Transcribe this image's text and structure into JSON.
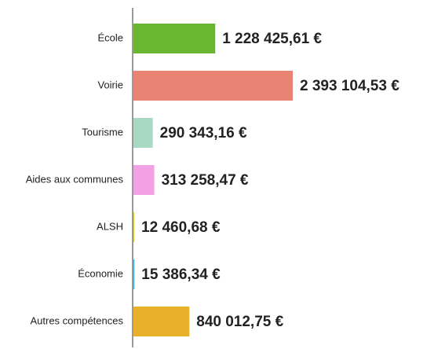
{
  "chart_data": {
    "type": "hbar",
    "categories": [
      "École",
      "Voirie",
      "Tourisme",
      "Aides aux communes",
      "ALSH",
      "Économie",
      "Autres compétences"
    ],
    "values": [
      1228425.61,
      2393104.53,
      290343.16,
      313258.47,
      12460.68,
      15386.34,
      840012.75
    ],
    "value_labels": [
      "1 228 425,61 €",
      "2 393 104,53 €",
      "290 343,16 €",
      "313 258,47 €",
      "12 460,68 €",
      "15 386,34 €",
      "840 012,75 €"
    ],
    "colors": [
      "#6ab632",
      "#e88272",
      "#a9d9c2",
      "#f1a1e4",
      "#d5d141",
      "#4bafe0",
      "#e9b02a"
    ]
  }
}
